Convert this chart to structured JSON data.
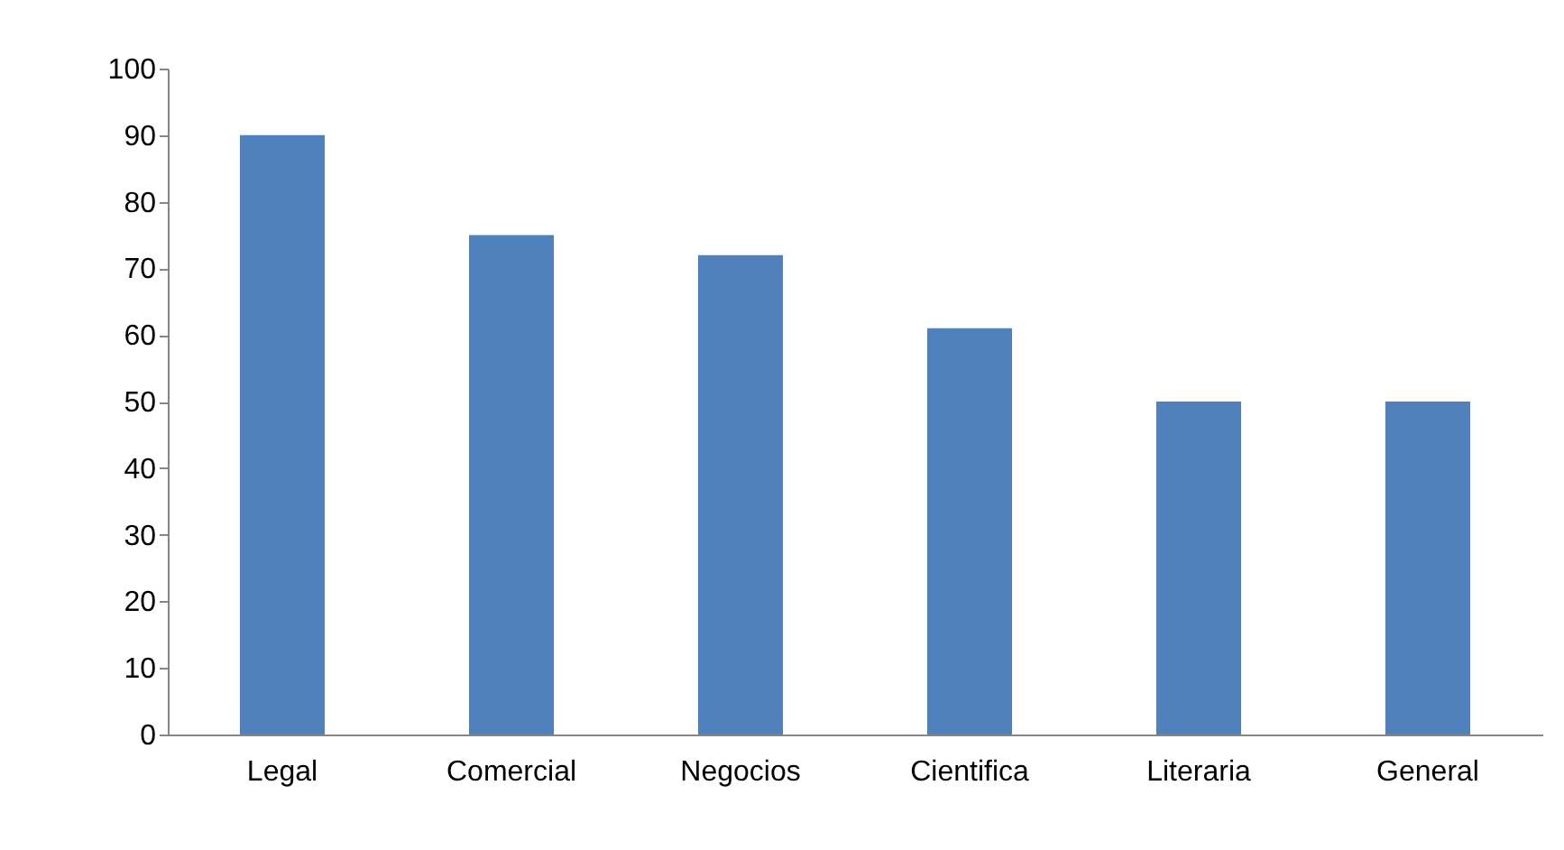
{
  "chart_data": {
    "type": "bar",
    "categories": [
      "Legal",
      "Comercial",
      "Negocios",
      "Cientifica",
      "Literaria",
      "General"
    ],
    "values": [
      90,
      75,
      72,
      61,
      50,
      50
    ],
    "color": "#4f81bd",
    "ylim": [
      0,
      100
    ],
    "yticks": [
      0,
      10,
      20,
      30,
      40,
      50,
      60,
      70,
      80,
      90,
      100
    ],
    "grid": false
  }
}
